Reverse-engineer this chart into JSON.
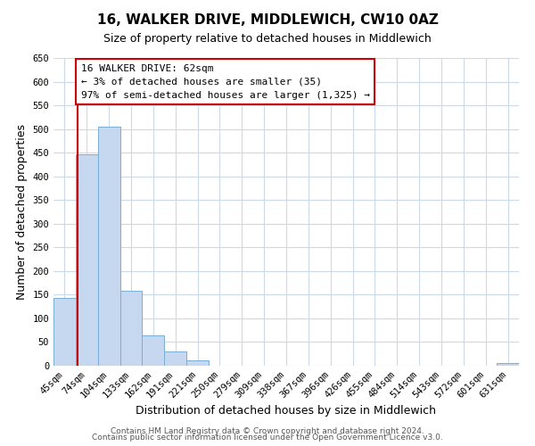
{
  "title": "16, WALKER DRIVE, MIDDLEWICH, CW10 0AZ",
  "subtitle": "Size of property relative to detached houses in Middlewich",
  "xlabel": "Distribution of detached houses by size in Middlewich",
  "ylabel": "Number of detached properties",
  "bar_labels": [
    "45sqm",
    "74sqm",
    "104sqm",
    "133sqm",
    "162sqm",
    "191sqm",
    "221sqm",
    "250sqm",
    "279sqm",
    "309sqm",
    "338sqm",
    "367sqm",
    "396sqm",
    "426sqm",
    "455sqm",
    "484sqm",
    "514sqm",
    "543sqm",
    "572sqm",
    "601sqm",
    "631sqm"
  ],
  "bar_values": [
    143,
    447,
    505,
    158,
    65,
    30,
    12,
    0,
    0,
    0,
    0,
    0,
    0,
    0,
    0,
    0,
    0,
    0,
    0,
    0,
    5
  ],
  "bar_color": "#c5d8f0",
  "bar_edge_color": "#7aadd4",
  "annotation_title": "16 WALKER DRIVE: 62sqm",
  "annotation_line1": "← 3% of detached houses are smaller (35)",
  "annotation_line2": "97% of semi-detached houses are larger (1,325) →",
  "annotation_box_facecolor": "#ffffff",
  "annotation_box_edgecolor": "#cc0000",
  "red_line_bar_index": 0.59,
  "ylim": [
    0,
    650
  ],
  "yticks": [
    0,
    50,
    100,
    150,
    200,
    250,
    300,
    350,
    400,
    450,
    500,
    550,
    600,
    650
  ],
  "footer_line1": "Contains HM Land Registry data © Crown copyright and database right 2024.",
  "footer_line2": "Contains public sector information licensed under the Open Government Licence v3.0.",
  "bg_color": "#ffffff",
  "grid_color": "#ccd9e8",
  "title_fontsize": 11,
  "subtitle_fontsize": 9,
  "axis_label_fontsize": 9,
  "tick_fontsize": 7.5,
  "annotation_fontsize": 8,
  "footer_fontsize": 6.5
}
